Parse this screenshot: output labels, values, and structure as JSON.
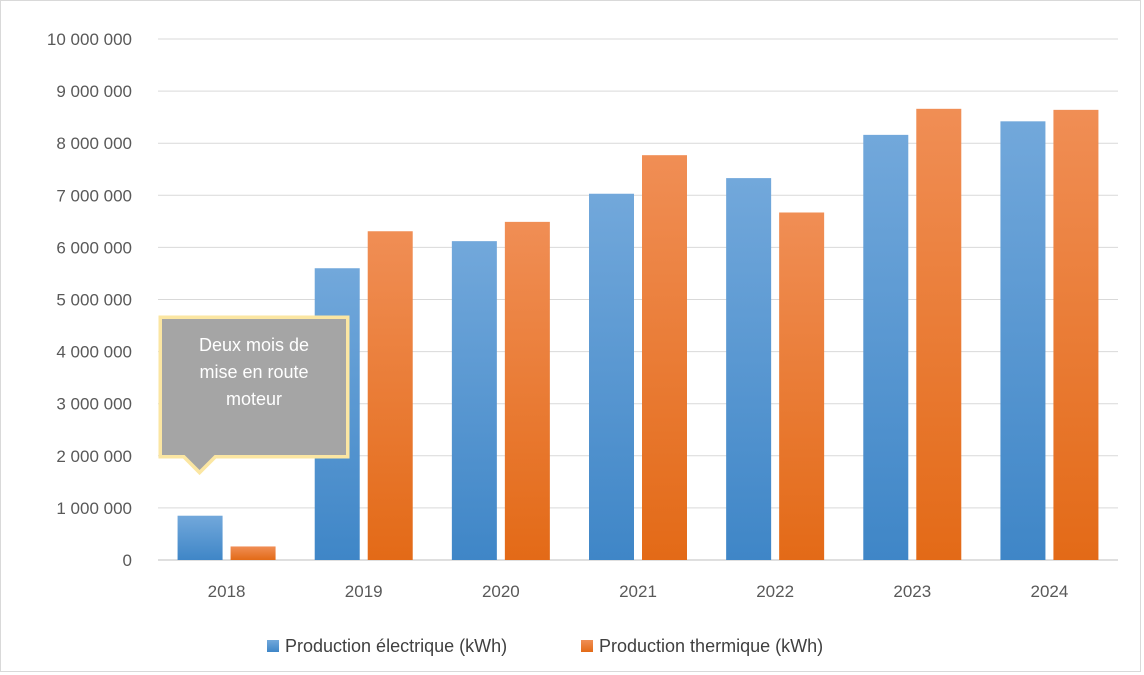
{
  "chart_data": {
    "type": "bar",
    "categories": [
      "2018",
      "2019",
      "2020",
      "2021",
      "2022",
      "2023",
      "2024"
    ],
    "series": [
      {
        "name": "Production électrique (kWh)",
        "values": [
          850000,
          5600000,
          6120000,
          7030000,
          7330000,
          8160000,
          8420000
        ],
        "color": "#5b9bd5"
      },
      {
        "name": "Production thermique (kWh)",
        "values": [
          260000,
          6310000,
          6490000,
          7770000,
          6670000,
          8660000,
          8640000
        ],
        "color": "#ed7d31"
      }
    ],
    "ylim": [
      0,
      10000000
    ],
    "y_ticks": [
      0,
      1000000,
      2000000,
      3000000,
      4000000,
      5000000,
      6000000,
      7000000,
      8000000,
      9000000,
      10000000
    ],
    "y_tick_labels": [
      "0",
      "1 000 000",
      "2 000 000",
      "3 000 000",
      "4 000 000",
      "5 000 000",
      "6 000 000",
      "7 000 000",
      "8 000 000",
      "9 000 000",
      "10 000 000"
    ],
    "grid": true,
    "legend_position": "bottom",
    "annotation": {
      "category": "2018",
      "lines": [
        "Deux mois de",
        "mise en route",
        "moteur"
      ]
    }
  }
}
